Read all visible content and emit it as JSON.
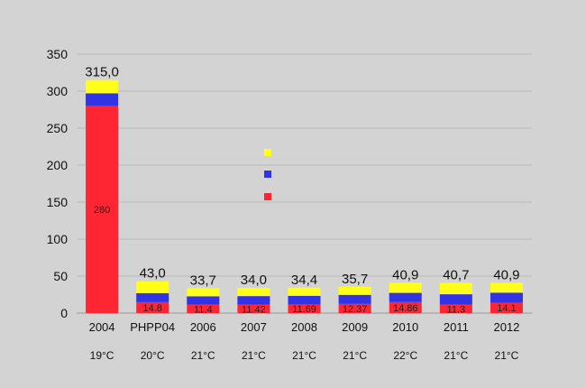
{
  "colors": {
    "background": "#d3d3d3",
    "grid": "#b8b8b8",
    "red": "#ff2633",
    "blue": "#3333e6",
    "yellow": "#ffff1a"
  },
  "chart_data": {
    "type": "bar",
    "stacked": true,
    "categories": [
      "2004",
      "PHPP04",
      "2006",
      "2007",
      "2008",
      "2009",
      "2010",
      "2011",
      "2012"
    ],
    "temperatures": [
      "19°C",
      "20°C",
      "21°C",
      "21°C",
      "21°C",
      "21°C",
      "22°C",
      "21°C",
      "21°C"
    ],
    "totals": [
      "315,0",
      "43,0",
      "33,7",
      "34,0",
      "34,4",
      "35,7",
      "40,9",
      "40,7",
      "40,9"
    ],
    "series": [
      {
        "color": "#ff2633",
        "values": [
          280,
          14.8,
          11.4,
          11.42,
          11.69,
          12.37,
          14.86,
          11.3,
          14.1
        ],
        "labels": [
          "280",
          "14.8",
          "11.4",
          "11.42",
          "11.69",
          "12.37",
          "14.86",
          "11.3",
          "14.1"
        ]
      },
      {
        "color": "#3333e6",
        "values": [
          17,
          12.2,
          11.3,
          11.6,
          11.7,
          12.3,
          12.5,
          14.2,
          13.5
        ]
      },
      {
        "color": "#ffff1a",
        "values": [
          18,
          16,
          11,
          11,
          11,
          11,
          13.5,
          15.2,
          13.3
        ]
      }
    ],
    "legend": {
      "placement": "center",
      "colors": [
        "#ffff1a",
        "#3333e6",
        "#ff2633"
      ]
    },
    "ylim": [
      0,
      350
    ],
    "yticks": [
      0,
      50,
      100,
      150,
      200,
      250,
      300,
      350
    ],
    "grid": true
  }
}
